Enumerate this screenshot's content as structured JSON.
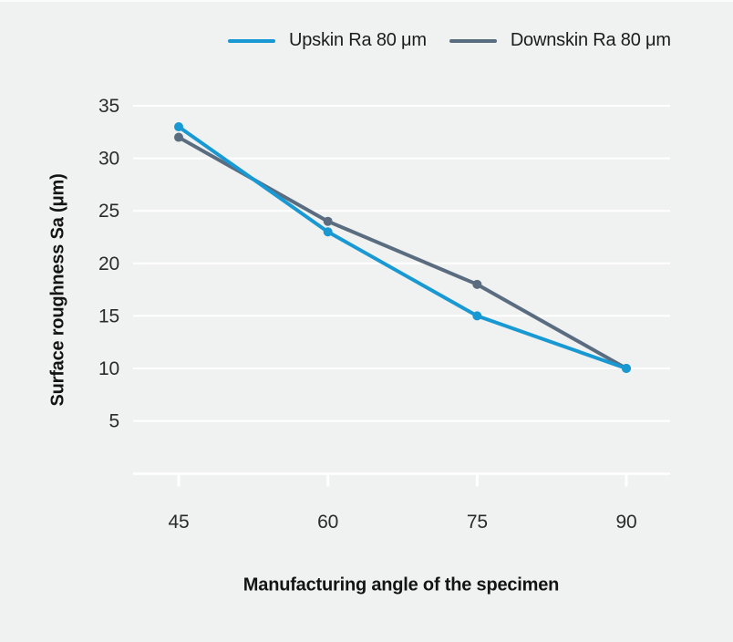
{
  "colors": {
    "background": "#f0f1f1",
    "gridline": "#ffffff",
    "axis_line": "#ffffff",
    "tick_text": "#2b2b2b",
    "title_text": "#141414",
    "upskin_blue": "#1899d3",
    "downskin_gray": "#5a6d80"
  },
  "legend": {
    "items": [
      {
        "label": "Upskin Ra 80 μm",
        "color": "#1899d3"
      },
      {
        "label": "Downskin Ra 80 μm",
        "color": "#5a6d80"
      }
    ]
  },
  "chart_data": {
    "type": "line",
    "title": "",
    "xlabel": "Manufacturing angle of the specimen",
    "ylabel": "Surface roughness Sa (μm)",
    "x": [
      45,
      60,
      75,
      90
    ],
    "x_tick_labels": [
      "45",
      "60",
      "75",
      "90"
    ],
    "y_ticks": [
      5,
      10,
      15,
      20,
      25,
      30,
      35
    ],
    "y_tick_labels": [
      "5",
      "10",
      "15",
      "20",
      "25",
      "30",
      "35"
    ],
    "xlim": [
      40.4,
      94.4
    ],
    "ylim": [
      0,
      35
    ],
    "grid": "horizontal-white",
    "legend_position": "top-center",
    "series": [
      {
        "name": "Upskin Ra 80 μm",
        "color": "#1899d3",
        "values": [
          33,
          23,
          15,
          10
        ]
      },
      {
        "name": "Downskin Ra 80 μm",
        "color": "#5a6d80",
        "values": [
          32,
          24,
          18,
          10
        ]
      }
    ]
  }
}
